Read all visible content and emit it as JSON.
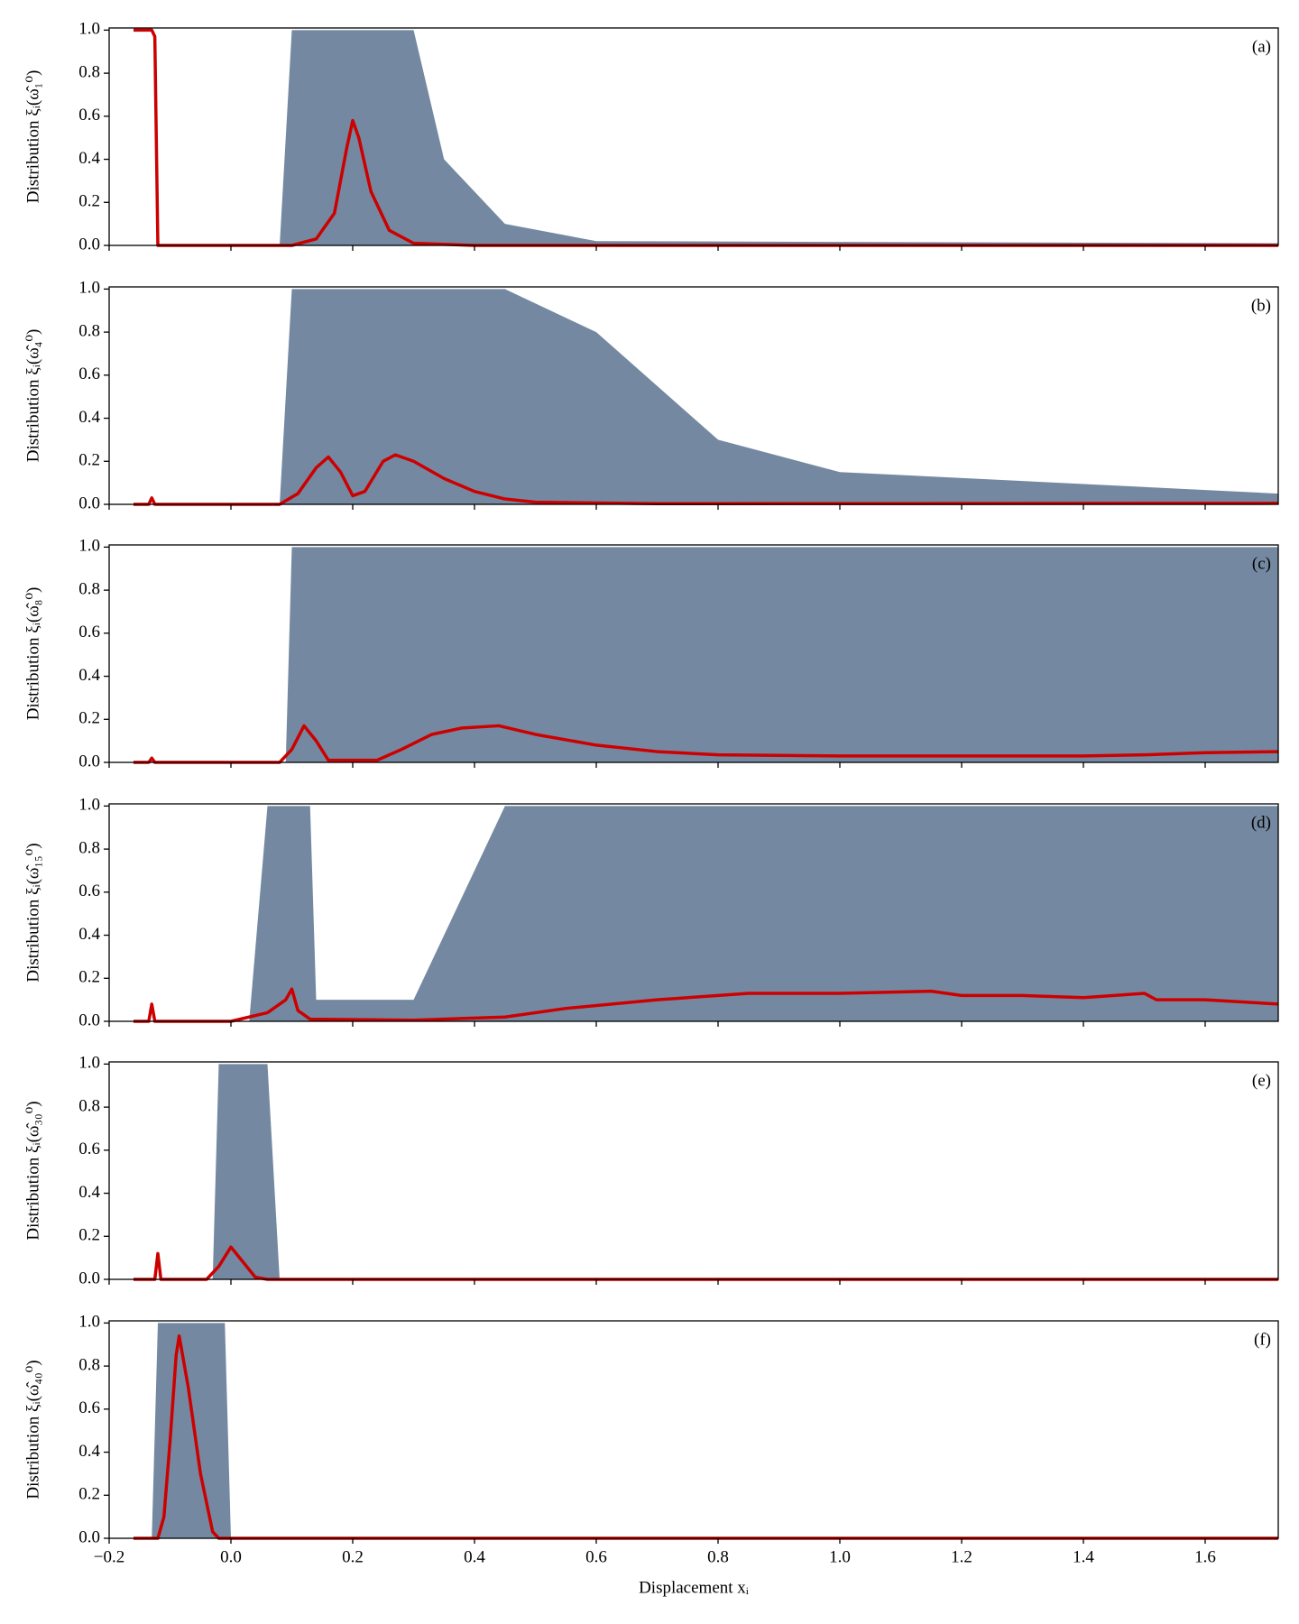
{
  "chart_data": [
    {
      "type": "line",
      "panel_label": "(a)",
      "ylabel": "Distribution ξᵢ(ω̂₁⁰)",
      "xlim": [
        -0.2,
        1.72
      ],
      "ylim": [
        0,
        1.01
      ],
      "xticks": [
        {
          "value": -0.2,
          "label": "−0.2"
        },
        {
          "value": 0,
          "label": "0.0"
        },
        0.2,
        0.4,
        0.6,
        0.8,
        {
          "value": 1,
          "label": "1.0"
        },
        1.2,
        1.4,
        1.6
      ],
      "yticks": [
        {
          "value": 0,
          "label": "0.0"
        },
        0.2,
        0.4,
        0.6,
        0.8,
        {
          "value": 1,
          "label": "1.0"
        }
      ],
      "cloud": {
        "color": "#173b63",
        "x": [
          0.08,
          0.1,
          0.3,
          0.35,
          0.45,
          0.6,
          1.72
        ],
        "upper": [
          0,
          1,
          1,
          0.4,
          0.1,
          0.02,
          0.01
        ]
      },
      "x": [
        -0.16,
        -0.13,
        -0.125,
        -0.12,
        0.1,
        0.14,
        0.17,
        0.19,
        0.2,
        0.21,
        0.23,
        0.26,
        0.3,
        0.4,
        1.72
      ],
      "series": [
        {
          "color": "#cc0000",
          "values": [
            1,
            1,
            0.97,
            0,
            0,
            0.03,
            0.15,
            0.45,
            0.58,
            0.5,
            0.25,
            0.07,
            0.01,
            0,
            0
          ]
        }
      ]
    },
    {
      "type": "line",
      "panel_label": "(b)",
      "ylabel": "Distribution ξᵢ(ω̂₄⁰)",
      "xlim": [
        -0.2,
        1.72
      ],
      "ylim": [
        0,
        1.01
      ],
      "xticks": [
        {
          "value": -0.2,
          "label": "−0.2"
        },
        {
          "value": 0,
          "label": "0.0"
        },
        0.2,
        0.4,
        0.6,
        0.8,
        {
          "value": 1,
          "label": "1.0"
        },
        1.2,
        1.4,
        1.6
      ],
      "yticks": [
        {
          "value": 0,
          "label": "0.0"
        },
        0.2,
        0.4,
        0.6,
        0.8,
        {
          "value": 1,
          "label": "1.0"
        }
      ],
      "cloud": {
        "color": "#173b63",
        "x": [
          0.08,
          0.1,
          0.45,
          0.6,
          0.8,
          1.0,
          1.72
        ],
        "upper": [
          0,
          1,
          1,
          0.8,
          0.3,
          0.15,
          0.05
        ]
      },
      "x": [
        -0.16,
        -0.135,
        -0.13,
        -0.125,
        0.08,
        0.11,
        0.14,
        0.16,
        0.18,
        0.2,
        0.22,
        0.25,
        0.27,
        0.3,
        0.35,
        0.4,
        0.45,
        0.5,
        0.7,
        1.72
      ],
      "series": [
        {
          "color": "#cc0000",
          "values": [
            0,
            0,
            0.03,
            0,
            0,
            0.05,
            0.17,
            0.22,
            0.15,
            0.04,
            0.06,
            0.2,
            0.23,
            0.2,
            0.12,
            0.06,
            0.025,
            0.01,
            0.003,
            0.005
          ]
        }
      ]
    },
    {
      "type": "line",
      "panel_label": "(c)",
      "ylabel": "Distribution ξᵢ(ω̂₈⁰)",
      "xlim": [
        -0.2,
        1.72
      ],
      "ylim": [
        0,
        1.01
      ],
      "xticks": [
        {
          "value": -0.2,
          "label": "−0.2"
        },
        {
          "value": 0,
          "label": "0.0"
        },
        0.2,
        0.4,
        0.6,
        0.8,
        {
          "value": 1,
          "label": "1.0"
        },
        1.2,
        1.4,
        1.6
      ],
      "yticks": [
        {
          "value": 0,
          "label": "0.0"
        },
        0.2,
        0.4,
        0.6,
        0.8,
        {
          "value": 1,
          "label": "1.0"
        }
      ],
      "cloud": {
        "color": "#173b63",
        "x": [
          0.09,
          0.1,
          1.72
        ],
        "upper": [
          0,
          1,
          1
        ]
      },
      "x": [
        -0.16,
        -0.135,
        -0.13,
        -0.125,
        0.08,
        0.1,
        0.12,
        0.14,
        0.16,
        0.24,
        0.28,
        0.33,
        0.38,
        0.44,
        0.5,
        0.6,
        0.7,
        0.8,
        1.0,
        1.2,
        1.4,
        1.5,
        1.6,
        1.72
      ],
      "series": [
        {
          "color": "#cc0000",
          "values": [
            0,
            0,
            0.02,
            0,
            0,
            0.06,
            0.17,
            0.1,
            0.01,
            0.01,
            0.06,
            0.13,
            0.16,
            0.17,
            0.13,
            0.08,
            0.05,
            0.035,
            0.03,
            0.03,
            0.03,
            0.035,
            0.045,
            0.05
          ]
        }
      ]
    },
    {
      "type": "line",
      "panel_label": "(d)",
      "ylabel": "Distribution ξᵢ(ω̂₁₅⁰)",
      "xlim": [
        -0.2,
        1.72
      ],
      "ylim": [
        0,
        1.01
      ],
      "xticks": [
        {
          "value": -0.2,
          "label": "−0.2"
        },
        {
          "value": 0,
          "label": "0.0"
        },
        0.2,
        0.4,
        0.6,
        0.8,
        {
          "value": 1,
          "label": "1.0"
        },
        1.2,
        1.4,
        1.6
      ],
      "yticks": [
        {
          "value": 0,
          "label": "0.0"
        },
        0.2,
        0.4,
        0.6,
        0.8,
        {
          "value": 1,
          "label": "1.0"
        }
      ],
      "cloud": {
        "color": "#173b63",
        "x": [
          0.03,
          0.06,
          0.13,
          0.14,
          0.3,
          0.45,
          1.72
        ],
        "upper": [
          0,
          1,
          1,
          0.1,
          0.1,
          1,
          1
        ]
      },
      "x": [
        -0.16,
        -0.135,
        -0.13,
        -0.125,
        0,
        0.06,
        0.09,
        0.1,
        0.11,
        0.13,
        0.3,
        0.45,
        0.55,
        0.7,
        0.85,
        1.0,
        1.15,
        1.2,
        1.3,
        1.4,
        1.5,
        1.52,
        1.6,
        1.72
      ],
      "series": [
        {
          "color": "#cc0000",
          "values": [
            0,
            0,
            0.08,
            0,
            0,
            0.04,
            0.1,
            0.15,
            0.05,
            0.01,
            0.005,
            0.02,
            0.06,
            0.1,
            0.13,
            0.13,
            0.14,
            0.12,
            0.12,
            0.11,
            0.13,
            0.1,
            0.1,
            0.08
          ]
        }
      ]
    },
    {
      "type": "line",
      "panel_label": "(e)",
      "ylabel": "Distribution ξᵢ(ω̂₃₀⁰)",
      "xlim": [
        -0.2,
        1.72
      ],
      "ylim": [
        0,
        1.01
      ],
      "xticks": [
        {
          "value": -0.2,
          "label": "−0.2"
        },
        {
          "value": 0,
          "label": "0.0"
        },
        0.2,
        0.4,
        0.6,
        0.8,
        {
          "value": 1,
          "label": "1.0"
        },
        1.2,
        1.4,
        1.6
      ],
      "yticks": [
        {
          "value": 0,
          "label": "0.0"
        },
        0.2,
        0.4,
        0.6,
        0.8,
        {
          "value": 1,
          "label": "1.0"
        }
      ],
      "cloud": {
        "color": "#173b63",
        "x": [
          -0.03,
          -0.02,
          0.06,
          0.08
        ],
        "upper": [
          0,
          1,
          1,
          0
        ]
      },
      "x": [
        -0.16,
        -0.125,
        -0.12,
        -0.115,
        -0.04,
        -0.02,
        0,
        0.02,
        0.04,
        0.06,
        1.72
      ],
      "series": [
        {
          "color": "#cc0000",
          "values": [
            0,
            0,
            0.12,
            0,
            0,
            0.06,
            0.15,
            0.08,
            0.01,
            0,
            0
          ]
        }
      ]
    },
    {
      "type": "line",
      "panel_label": "(f)",
      "ylabel": "Distribution ξᵢ(ω̂₄₀⁰)",
      "xlabel": "Displacement xᵢ",
      "xlim": [
        -0.2,
        1.72
      ],
      "ylim": [
        0,
        1.01
      ],
      "xticks": [
        {
          "value": -0.2,
          "label": "−0.2"
        },
        {
          "value": 0,
          "label": "0.0"
        },
        0.2,
        0.4,
        0.6,
        0.8,
        {
          "value": 1,
          "label": "1.0"
        },
        1.2,
        1.4,
        1.6
      ],
      "yticks": [
        {
          "value": 0,
          "label": "0.0"
        },
        0.2,
        0.4,
        0.6,
        0.8,
        {
          "value": 1,
          "label": "1.0"
        }
      ],
      "cloud": {
        "color": "#173b63",
        "x": [
          -0.13,
          -0.12,
          -0.01,
          0
        ],
        "upper": [
          0,
          1,
          1,
          0
        ]
      },
      "x": [
        -0.16,
        -0.12,
        -0.11,
        -0.1,
        -0.09,
        -0.085,
        -0.07,
        -0.05,
        -0.03,
        -0.02,
        1.72
      ],
      "series": [
        {
          "color": "#cc0000",
          "values": [
            0,
            0,
            0.1,
            0.45,
            0.85,
            0.94,
            0.7,
            0.3,
            0.03,
            0,
            0
          ]
        }
      ]
    }
  ]
}
